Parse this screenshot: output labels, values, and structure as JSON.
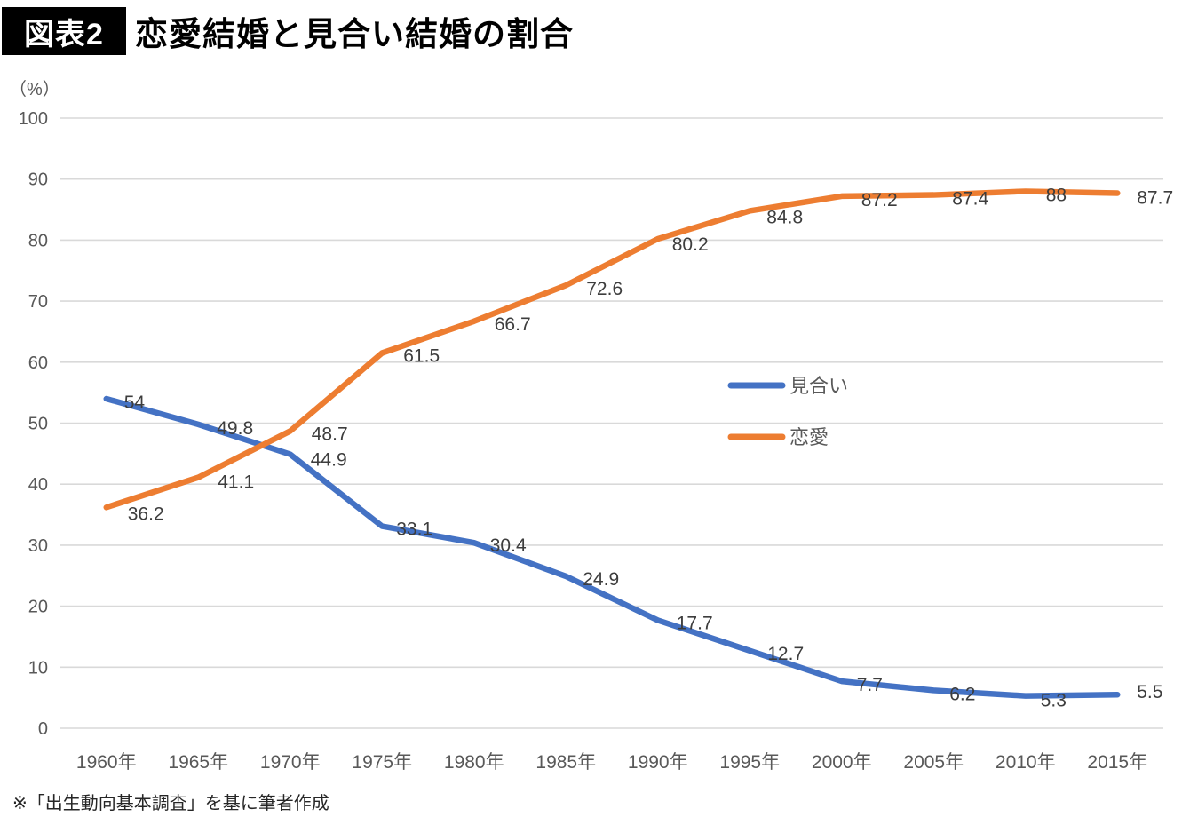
{
  "header": {
    "badge": "図表2",
    "title": "恋愛結婚と見合い結婚の割合"
  },
  "y_unit_label": "（%）",
  "footnote": "※「出生動向基本調査」を基に筆者作成",
  "colors": {
    "miai_line": "#4472C4",
    "renai_line": "#ED7D31",
    "gridline": "#D9D9D9",
    "axis_text": "#595959",
    "data_label_text": "#3d3d3d"
  },
  "chart_data": {
    "type": "line",
    "title": "恋愛結婚と見合い結婚の割合",
    "ylabel": "（%）",
    "ylim": [
      0,
      100
    ],
    "yticks": [
      0,
      10,
      20,
      30,
      40,
      50,
      60,
      70,
      80,
      90,
      100
    ],
    "grid": true,
    "categories": [
      "1960年",
      "1965年",
      "1970年",
      "1975年",
      "1980年",
      "1985年",
      "1990年",
      "1995年",
      "2000年",
      "2005年",
      "2010年",
      "2015年"
    ],
    "series": [
      {
        "name": "見合い",
        "color": "#4472C4",
        "values": [
          54,
          49.8,
          44.9,
          33.1,
          30.4,
          24.9,
          17.7,
          12.7,
          7.7,
          6.2,
          5.3,
          5.5
        ]
      },
      {
        "name": "恋愛",
        "color": "#ED7D31",
        "values": [
          36.2,
          41.1,
          48.7,
          61.5,
          66.7,
          72.6,
          80.2,
          84.8,
          87.2,
          87.4,
          88,
          87.7
        ]
      }
    ],
    "legend_position": "middle-right",
    "legend_entries": [
      "見合い",
      "恋愛"
    ]
  }
}
